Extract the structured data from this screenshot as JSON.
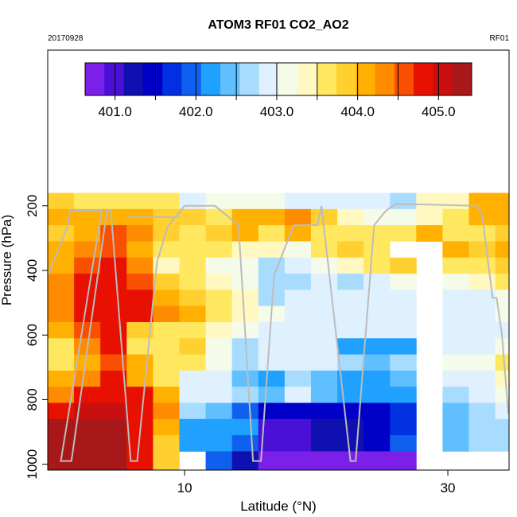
{
  "chart_data": {
    "type": "heatmap",
    "title": "ATOM3 RF01 CO2_AO2",
    "subtitle_left": "20170928",
    "subtitle_right": "RF01",
    "x_label": "Latitude (°N)",
    "y_label": "Pressure (hPa)",
    "xlim": [
      -0.4,
      34.65
    ],
    "ylim": [
      1018,
      -282
    ],
    "xticks": [
      10,
      30
    ],
    "yticks": [
      200,
      400,
      600,
      800,
      1000
    ],
    "x_edges": [
      -0.4,
      1.6,
      3.6,
      5.6,
      7.6,
      9.6,
      11.6,
      13.6,
      15.6,
      17.6,
      19.6,
      21.6,
      23.6,
      25.6,
      27.6,
      29.6,
      31.6,
      33.6,
      34.65
    ],
    "y_edges": [
      160,
      210,
      260,
      310,
      360,
      410,
      460,
      510,
      560,
      610,
      660,
      710,
      760,
      810,
      860,
      910,
      960,
      1018
    ],
    "z": [
      [
        403.8,
        403.7,
        403.6,
        403.7,
        403.5,
        402.8,
        403.1,
        403.1,
        403.1,
        403.0,
        403.0,
        402.9,
        402.8,
        402.6,
        403.4,
        403.3,
        404.1,
        404.2
      ],
      [
        404.1,
        404.0,
        404.2,
        404.0,
        403.9,
        403.8,
        403.7,
        404.2,
        404.0,
        404.3,
        403.8,
        403.4,
        403.2,
        403.1,
        403.3,
        403.5,
        404.0,
        404.2
      ],
      [
        403.9,
        404.1,
        404.5,
        404.3,
        403.8,
        403.7,
        403.9,
        404.0,
        403.7,
        404.0,
        403.7,
        403.6,
        403.6,
        403.7,
        404.0,
        403.7,
        403.6,
        403.8
      ],
      [
        404.0,
        404.4,
        404.6,
        404.1,
        403.6,
        403.6,
        403.5,
        403.4,
        403.3,
        403.2,
        403.5,
        403.8,
        403.6,
        null,
        null,
        404.0,
        403.8,
        404.0
      ],
      [
        404.2,
        404.5,
        404.7,
        404.3,
        403.3,
        403.6,
        403.2,
        403.1,
        402.7,
        402.9,
        403.1,
        403.3,
        403.6,
        403.8,
        null,
        403.6,
        403.6,
        403.8
      ],
      [
        404.3,
        404.7,
        404.8,
        404.5,
        403.9,
        403.6,
        403.4,
        403.1,
        402.7,
        402.6,
        403.0,
        402.7,
        403.0,
        403.1,
        null,
        403.1,
        403.3,
        403.6
      ],
      [
        404.4,
        404.8,
        404.9,
        404.8,
        404.2,
        403.9,
        403.6,
        403.3,
        402.7,
        402.8,
        403.0,
        402.8,
        403.0,
        403.0,
        null,
        402.9,
        403.0,
        403.2
      ],
      [
        404.3,
        404.8,
        404.9,
        404.8,
        404.3,
        404.0,
        403.6,
        403.4,
        403.1,
        403.0,
        403.0,
        403.0,
        403.0,
        403.0,
        null,
        403.0,
        402.9,
        403.1
      ],
      [
        404.0,
        404.5,
        404.8,
        403.9,
        403.7,
        403.6,
        403.3,
        403.1,
        403.0,
        403.0,
        403.0,
        402.9,
        402.8,
        402.8,
        null,
        402.8,
        402.8,
        403.0
      ],
      [
        403.7,
        404.3,
        404.8,
        403.6,
        403.7,
        403.8,
        403.2,
        402.6,
        403.0,
        403.0,
        402.9,
        402.2,
        402.2,
        402.3,
        null,
        402.8,
        403.0,
        403.2
      ],
      [
        403.7,
        404.2,
        404.6,
        404.0,
        403.7,
        403.6,
        403.1,
        402.6,
        402.8,
        402.8,
        402.8,
        402.6,
        402.5,
        402.6,
        null,
        403.1,
        403.2,
        403.5
      ],
      [
        404.0,
        404.4,
        404.8,
        404.2,
        403.6,
        403.0,
        402.8,
        402.5,
        402.3,
        402.7,
        402.5,
        402.2,
        402.2,
        402.5,
        null,
        402.9,
        403.0,
        403.4
      ],
      [
        404.4,
        404.7,
        404.9,
        404.8,
        404.2,
        403.0,
        402.8,
        402.6,
        402.5,
        402.8,
        402.5,
        402.2,
        402.1,
        402.3,
        null,
        402.7,
        402.9,
        403.1
      ],
      [
        404.8,
        405.0,
        405.1,
        404.9,
        404.3,
        402.7,
        402.5,
        402.0,
        401.4,
        401.4,
        401.5,
        401.4,
        401.5,
        401.7,
        null,
        402.5,
        402.7,
        403.0
      ],
      [
        405.2,
        405.2,
        405.2,
        404.9,
        404.2,
        402.2,
        402.1,
        402.3,
        401.1,
        401.0,
        401.3,
        401.3,
        401.4,
        401.8,
        null,
        402.5,
        402.6,
        402.7
      ],
      [
        405.2,
        405.2,
        405.2,
        404.8,
        403.9,
        402.3,
        402.1,
        402.0,
        400.9,
        400.9,
        401.3,
        401.2,
        401.4,
        401.9,
        null,
        402.5,
        402.6,
        402.7
      ],
      [
        405.2,
        405.2,
        405.2,
        404.7,
        403.8,
        null,
        402.0,
        401.3,
        400.8,
        400.8,
        400.8,
        400.8,
        400.8,
        400.8,
        null,
        null,
        null,
        null
      ]
    ],
    "zlim": [
      400.63,
      405.41
    ],
    "colorscale": [
      "#7b20e8",
      "#4a10d8",
      "#1010b0",
      "#0000c8",
      "#0030e0",
      "#1060f0",
      "#20a0ff",
      "#60c0ff",
      "#a8dcff",
      "#dff0ff",
      "#f4fbe8",
      "#fff8c0",
      "#ffe860",
      "#ffd030",
      "#ffb000",
      "#ff8c00",
      "#f85000",
      "#e81000",
      "#c81010",
      "#a81818"
    ],
    "colorbar_ticks": [
      {
        "value": 401,
        "label": "401.0"
      },
      {
        "value": 402,
        "label": "402.0"
      },
      {
        "value": 403,
        "label": "403.0"
      },
      {
        "value": 404,
        "label": "404.0"
      },
      {
        "value": 405,
        "label": "405.0"
      }
    ],
    "colorbar_minor_ticks": [
      401.5,
      402.5,
      403.5,
      404.5
    ],
    "track": {
      "color": "#bcbcbc",
      "x": [
        -0.4,
        1.1,
        1.3,
        3.7,
        0.6,
        1.4,
        4.1,
        4.4,
        5.9,
        6.4,
        7.9,
        8.7,
        10.0,
        12.3,
        14.1,
        15.2,
        15.8,
        16.8,
        18.3,
        20.1,
        20.4,
        22.6,
        23.0,
        24.4,
        25.3,
        26.0,
        27.4,
        32.2,
        32.6,
        33.4,
        33.7,
        34.1,
        34.6,
        null,
        5.6,
        9.6
      ],
      "y": [
        415,
        265,
        215,
        215,
        990,
        990,
        215,
        215,
        990,
        990,
        375,
        265,
        200,
        200,
        260,
        990,
        990,
        415,
        260,
        260,
        200,
        990,
        990,
        260,
        215,
        195,
        195,
        200,
        225,
        485,
        485,
        595,
        845,
        null,
        235,
        235
      ]
    }
  }
}
